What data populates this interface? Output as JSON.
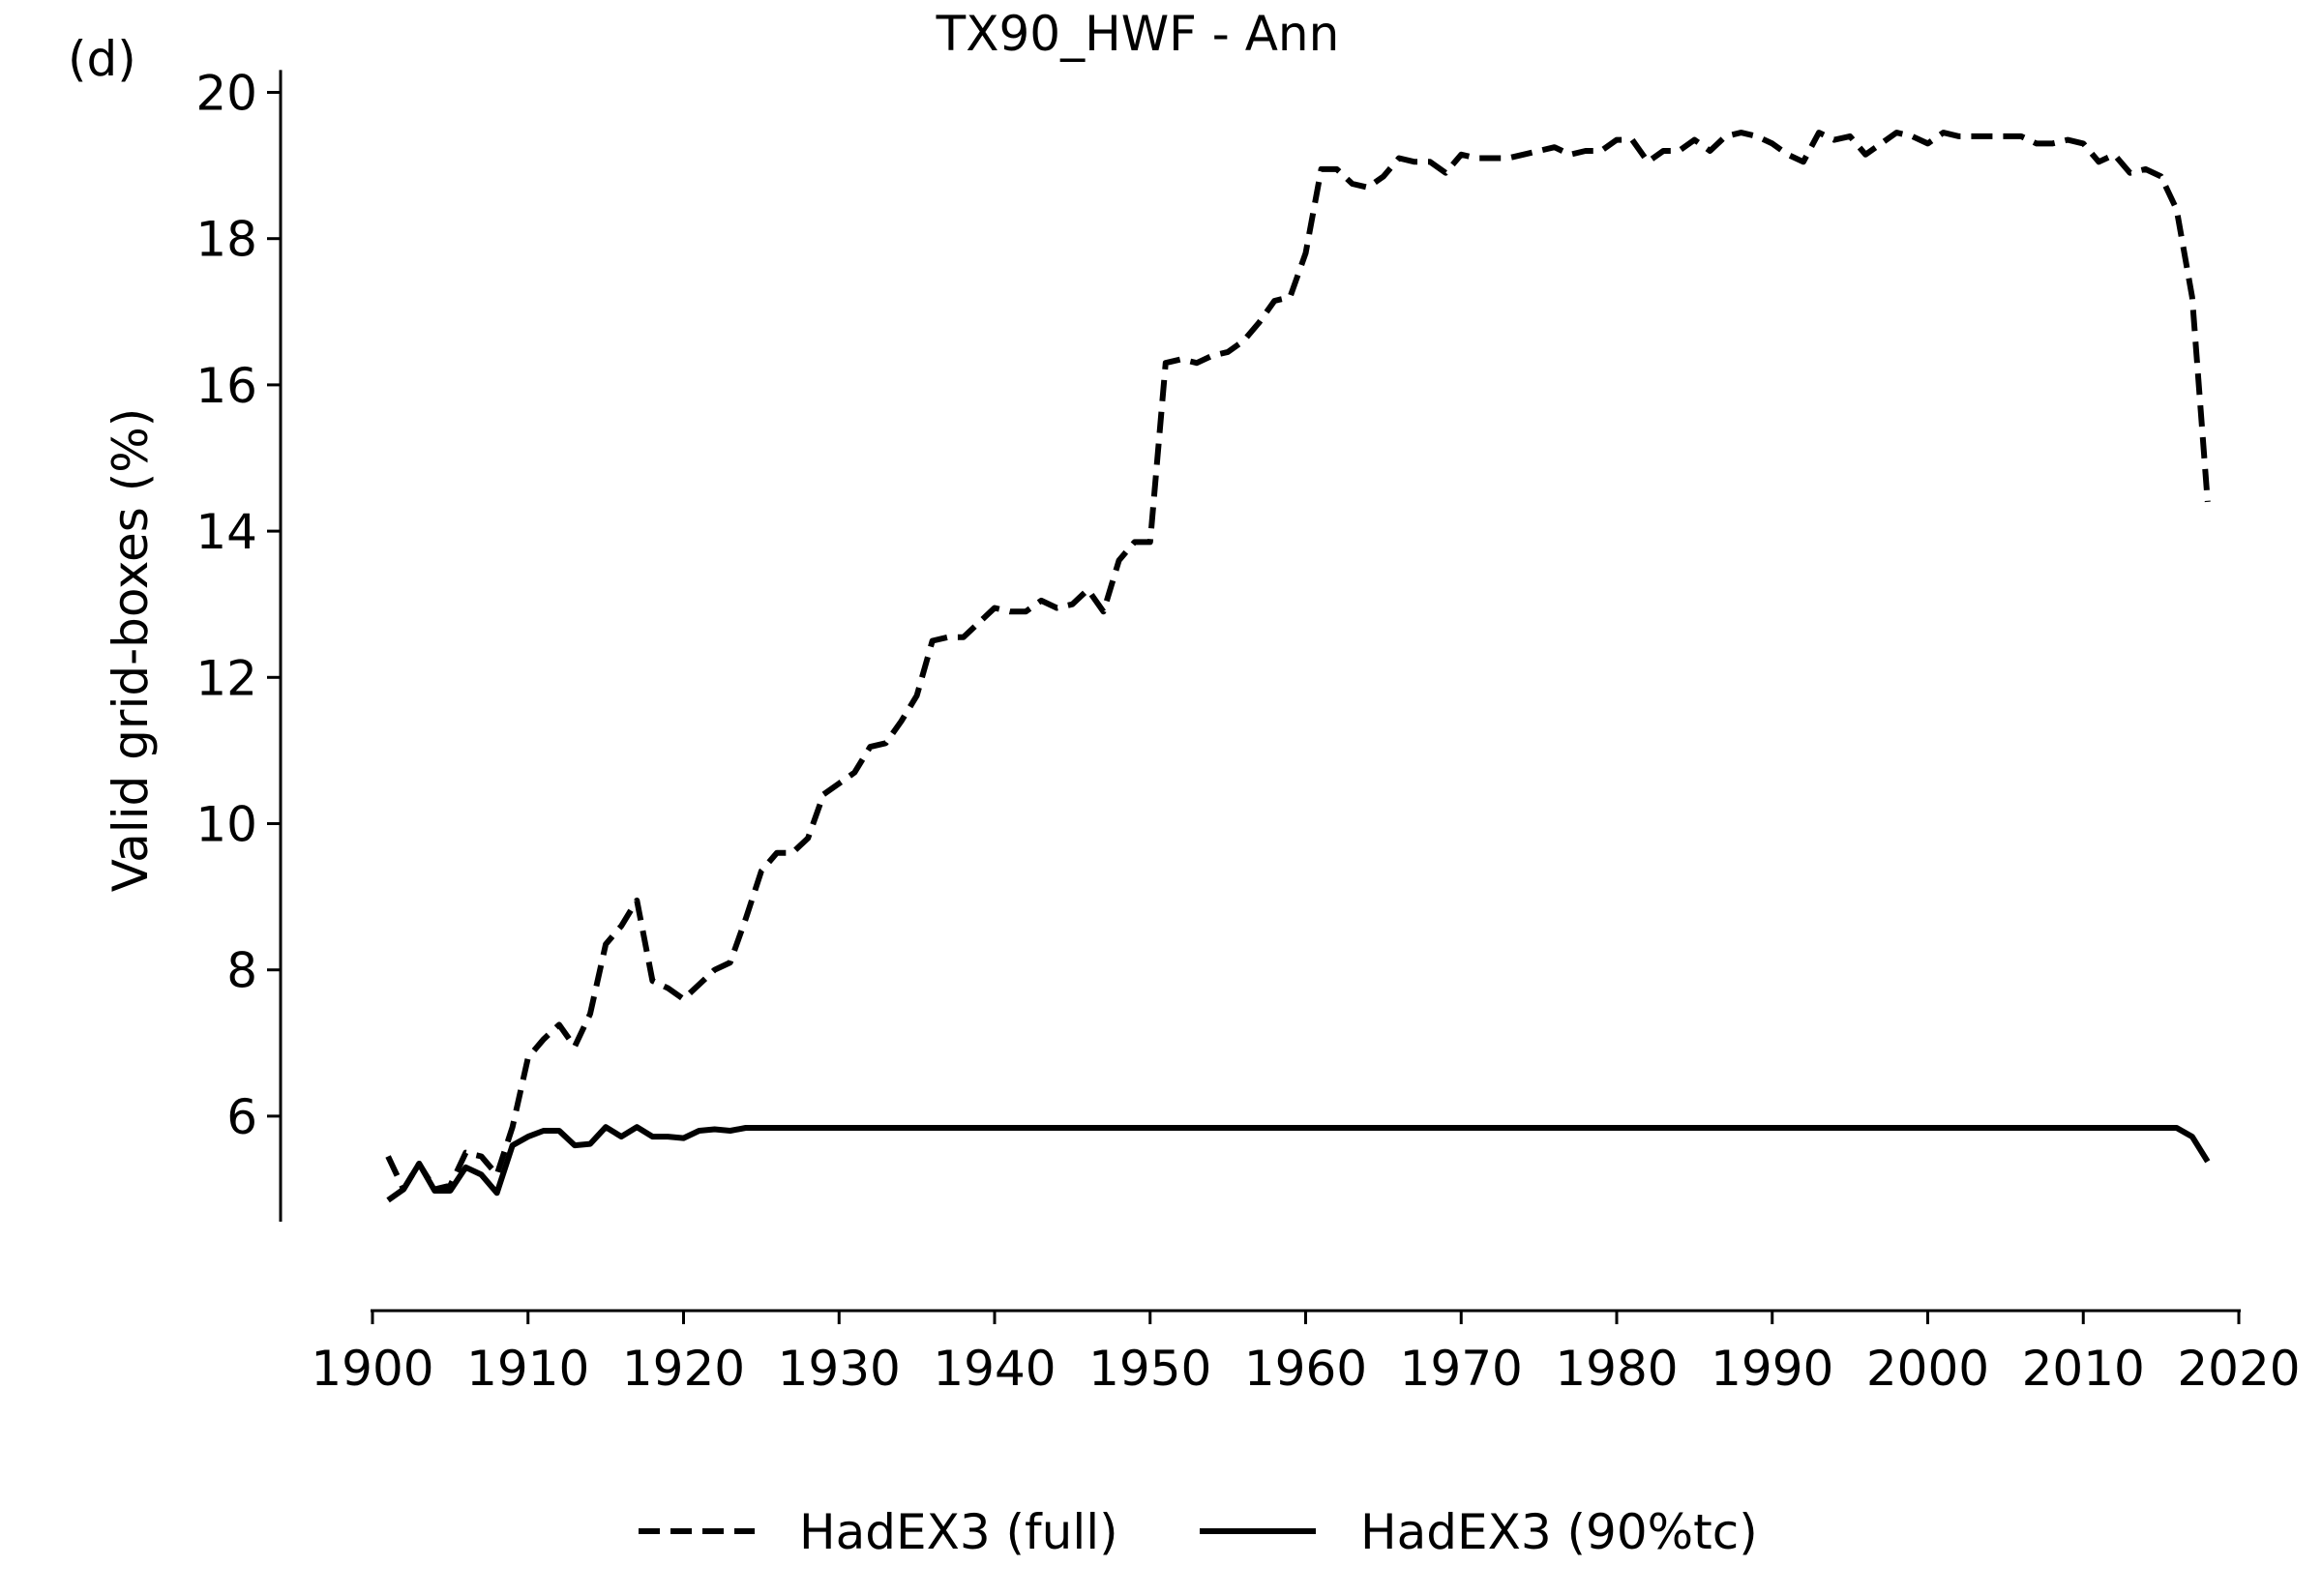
{
  "chart_data": {
    "type": "line",
    "panel_label": "(d)",
    "title": "TX90_HWF - Ann",
    "xlabel": "",
    "ylabel": "Valid grid-boxes (%)",
    "xlim": [
      1900,
      2020
    ],
    "ylim": [
      4.2,
      20.2
    ],
    "x_ticks": [
      1900,
      1910,
      1920,
      1930,
      1940,
      1950,
      1960,
      1970,
      1980,
      1990,
      2000,
      2010,
      2020
    ],
    "y_ticks": [
      6,
      8,
      10,
      12,
      14,
      16,
      18,
      20
    ],
    "grid": false,
    "legend": "bottom-center",
    "x": [
      1901,
      1902,
      1903,
      1904,
      1905,
      1906,
      1907,
      1908,
      1909,
      1910,
      1911,
      1912,
      1913,
      1914,
      1915,
      1916,
      1917,
      1918,
      1919,
      1920,
      1921,
      1922,
      1923,
      1924,
      1925,
      1926,
      1927,
      1928,
      1929,
      1930,
      1931,
      1932,
      1933,
      1934,
      1935,
      1936,
      1937,
      1938,
      1939,
      1940,
      1941,
      1942,
      1943,
      1944,
      1945,
      1946,
      1947,
      1948,
      1949,
      1950,
      1951,
      1952,
      1953,
      1954,
      1955,
      1956,
      1957,
      1958,
      1959,
      1960,
      1961,
      1962,
      1963,
      1964,
      1965,
      1966,
      1967,
      1968,
      1969,
      1970,
      1971,
      1972,
      1973,
      1974,
      1975,
      1976,
      1977,
      1978,
      1979,
      1980,
      1981,
      1982,
      1983,
      1984,
      1985,
      1986,
      1987,
      1988,
      1989,
      1990,
      1991,
      1992,
      1993,
      1994,
      1995,
      1996,
      1997,
      1998,
      1999,
      2000,
      2001,
      2002,
      2003,
      2004,
      2005,
      2006,
      2007,
      2008,
      2009,
      2010,
      2011,
      2012,
      2013,
      2014,
      2015,
      2016,
      2017,
      2018
    ],
    "series": [
      {
        "name": "HadEX3 (full)",
        "style": "dashed",
        "color": "#000000",
        "values": [
          5.45,
          5.0,
          5.35,
          5.0,
          5.05,
          5.5,
          5.45,
          5.2,
          5.85,
          6.8,
          7.05,
          7.25,
          6.95,
          7.4,
          8.35,
          8.6,
          8.95,
          7.85,
          7.75,
          7.6,
          7.8,
          8.0,
          8.1,
          8.7,
          9.35,
          9.6,
          9.6,
          9.8,
          10.4,
          10.55,
          10.7,
          11.05,
          11.1,
          11.4,
          11.75,
          12.5,
          12.55,
          12.55,
          12.75,
          12.95,
          12.9,
          12.9,
          13.05,
          12.95,
          13.0,
          13.2,
          12.9,
          13.6,
          13.85,
          13.85,
          16.3,
          16.35,
          16.3,
          16.4,
          16.45,
          16.6,
          16.85,
          17.15,
          17.2,
          17.8,
          18.95,
          18.95,
          18.75,
          18.7,
          18.85,
          19.1,
          19.05,
          19.05,
          18.9,
          19.15,
          19.1,
          19.1,
          19.1,
          19.15,
          19.2,
          19.25,
          19.15,
          19.2,
          19.2,
          19.35,
          19.35,
          19.05,
          19.2,
          19.2,
          19.35,
          19.2,
          19.4,
          19.45,
          19.4,
          19.3,
          19.15,
          19.05,
          19.45,
          19.35,
          19.4,
          19.15,
          19.3,
          19.45,
          19.4,
          19.3,
          19.45,
          19.4,
          19.4,
          19.4,
          19.4,
          19.4,
          19.3,
          19.3,
          19.35,
          19.3,
          19.05,
          19.15,
          18.9,
          18.95,
          18.85,
          18.4,
          17.2,
          14.4
        ]
      },
      {
        "name": "HadEX3 (90%tc)",
        "style": "solid",
        "color": "#000000",
        "values": [
          4.85,
          5.0,
          5.35,
          4.98,
          4.98,
          5.3,
          5.2,
          4.95,
          5.6,
          5.72,
          5.8,
          5.8,
          5.6,
          5.62,
          5.85,
          5.72,
          5.85,
          5.72,
          5.72,
          5.7,
          5.8,
          5.82,
          5.8,
          5.84,
          5.84,
          5.84,
          5.84,
          5.84,
          5.84,
          5.84,
          5.84,
          5.84,
          5.84,
          5.84,
          5.84,
          5.84,
          5.84,
          5.84,
          5.84,
          5.84,
          5.84,
          5.84,
          5.84,
          5.84,
          5.84,
          5.84,
          5.84,
          5.84,
          5.84,
          5.84,
          5.84,
          5.84,
          5.84,
          5.84,
          5.84,
          5.84,
          5.84,
          5.84,
          5.84,
          5.84,
          5.84,
          5.84,
          5.84,
          5.84,
          5.84,
          5.84,
          5.84,
          5.84,
          5.84,
          5.84,
          5.84,
          5.84,
          5.84,
          5.84,
          5.84,
          5.84,
          5.84,
          5.84,
          5.84,
          5.84,
          5.84,
          5.84,
          5.84,
          5.84,
          5.84,
          5.84,
          5.84,
          5.84,
          5.84,
          5.84,
          5.84,
          5.84,
          5.84,
          5.84,
          5.84,
          5.84,
          5.84,
          5.84,
          5.84,
          5.84,
          5.84,
          5.84,
          5.84,
          5.84,
          5.84,
          5.84,
          5.84,
          5.84,
          5.84,
          5.84,
          5.84,
          5.84,
          5.84,
          5.84,
          5.84,
          5.84,
          5.72,
          5.38
        ]
      }
    ]
  }
}
